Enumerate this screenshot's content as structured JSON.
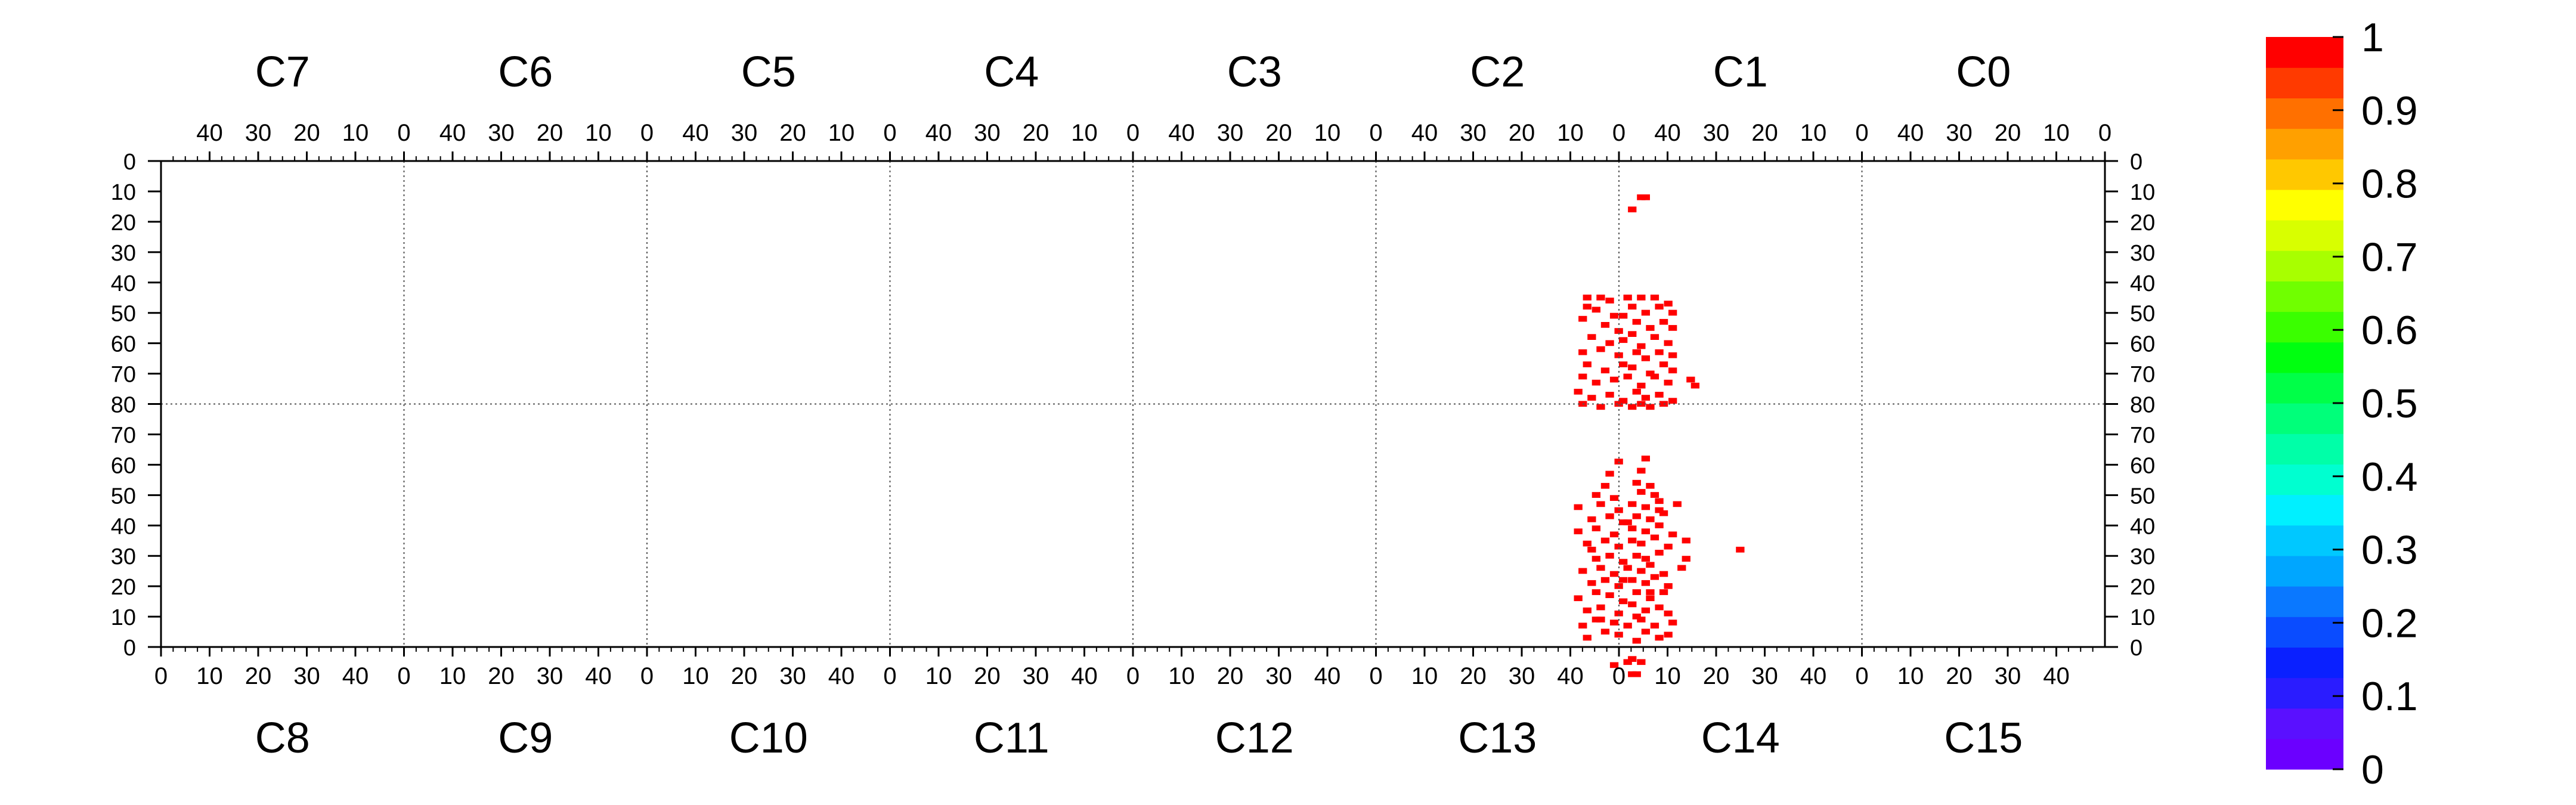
{
  "chart_data": {
    "type": "heatmap",
    "title": "",
    "xlabel": "",
    "ylabel": "",
    "chip_labels_top": [
      "C7",
      "C6",
      "C5",
      "C4",
      "C3",
      "C2",
      "C1",
      "C0"
    ],
    "chip_labels_bottom": [
      "C8",
      "C9",
      "C10",
      "C11",
      "C12",
      "C13",
      "C14",
      "C15"
    ],
    "x_ticks_top": [
      "40",
      "30",
      "20",
      "10",
      "0"
    ],
    "x_ticks_bottom": [
      "0",
      "10",
      "20",
      "30",
      "40"
    ],
    "y_ticks": [
      "0",
      "10",
      "20",
      "30",
      "40",
      "50",
      "60",
      "70",
      "80",
      "70",
      "60",
      "50",
      "40",
      "30",
      "20",
      "10",
      "0"
    ],
    "colorbar": {
      "ticks": [
        "0",
        "0.1",
        "0.2",
        "0.3",
        "0.4",
        "0.5",
        "0.6",
        "0.7",
        "0.8",
        "0.9",
        "1"
      ],
      "range": [
        0,
        1
      ],
      "colors": [
        "#6b00ff",
        "#5a10ff",
        "#2a1cff",
        "#0a20ff",
        "#0a4cff",
        "#0a78ff",
        "#00a6ff",
        "#00c8ff",
        "#00f0ff",
        "#00ffd0",
        "#00ffa8",
        "#00ff7a",
        "#00ff48",
        "#00ff10",
        "#3aff00",
        "#70ff00",
        "#a8ff00",
        "#d8ff00",
        "#ffff00",
        "#ffc800",
        "#ffa000",
        "#ff7000",
        "#ff3a00",
        "#ff0000"
      ]
    },
    "grid": "dotted chip boundaries",
    "hit_color": "#ff0000",
    "hit_value": 1,
    "hits": [
      [
        2,
        15
      ],
      [
        4,
        11
      ],
      [
        5,
        11
      ],
      [
        -8,
        44
      ],
      [
        -8,
        47
      ],
      [
        -5,
        44
      ],
      [
        -3,
        45
      ],
      [
        1,
        44
      ],
      [
        4,
        44
      ],
      [
        7,
        44
      ],
      [
        -6,
        48
      ],
      [
        -2,
        50
      ],
      [
        0,
        50
      ],
      [
        2,
        47
      ],
      [
        5,
        49
      ],
      [
        8,
        47
      ],
      [
        10,
        46
      ],
      [
        11,
        49
      ],
      [
        -9,
        51
      ],
      [
        -4,
        53
      ],
      [
        -1,
        55
      ],
      [
        3,
        52
      ],
      [
        6,
        54
      ],
      [
        9,
        52
      ],
      [
        11,
        54
      ],
      [
        -7,
        57
      ],
      [
        -3,
        59
      ],
      [
        0,
        58
      ],
      [
        2,
        56
      ],
      [
        4,
        60
      ],
      [
        7,
        57
      ],
      [
        10,
        59
      ],
      [
        -9,
        62
      ],
      [
        -5,
        61
      ],
      [
        -1,
        63
      ],
      [
        3,
        62
      ],
      [
        5,
        64
      ],
      [
        8,
        62
      ],
      [
        11,
        63
      ],
      [
        -8,
        66
      ],
      [
        -4,
        68
      ],
      [
        0,
        66
      ],
      [
        2,
        67
      ],
      [
        6,
        69
      ],
      [
        9,
        66
      ],
      [
        11,
        68
      ],
      [
        -9,
        70
      ],
      [
        -6,
        72
      ],
      [
        -2,
        71
      ],
      [
        1,
        70
      ],
      [
        4,
        73
      ],
      [
        7,
        70
      ],
      [
        10,
        72
      ],
      [
        15,
        71
      ],
      [
        16,
        73
      ],
      [
        -10,
        75
      ],
      [
        -7,
        77
      ],
      [
        -3,
        76
      ],
      [
        0,
        78
      ],
      [
        3,
        75
      ],
      [
        5,
        77
      ],
      [
        8,
        76
      ],
      [
        11,
        78
      ],
      [
        -9,
        79
      ],
      [
        -5,
        80
      ],
      [
        -1,
        79
      ],
      [
        2,
        80
      ],
      [
        4,
        79
      ],
      [
        6,
        80
      ],
      [
        9,
        79
      ],
      [
        -8,
        156
      ],
      [
        -4,
        154
      ],
      [
        -1,
        155
      ],
      [
        3,
        157
      ],
      [
        5,
        154
      ],
      [
        8,
        156
      ],
      [
        10,
        155
      ],
      [
        -9,
        152
      ],
      [
        -6,
        150
      ],
      [
        -2,
        151
      ],
      [
        1,
        152
      ],
      [
        4,
        150
      ],
      [
        7,
        152
      ],
      [
        11,
        151
      ],
      [
        -8,
        147
      ],
      [
        -5,
        146
      ],
      [
        -1,
        148
      ],
      [
        2,
        145
      ],
      [
        5,
        147
      ],
      [
        8,
        146
      ],
      [
        10,
        148
      ],
      [
        -10,
        143
      ],
      [
        -6,
        141
      ],
      [
        -3,
        142
      ],
      [
        0,
        144
      ],
      [
        3,
        141
      ],
      [
        6,
        143
      ],
      [
        9,
        141
      ],
      [
        -7,
        138
      ],
      [
        -4,
        137
      ],
      [
        -1,
        139
      ],
      [
        2,
        137
      ],
      [
        5,
        138
      ],
      [
        7,
        136
      ],
      [
        10,
        139
      ],
      [
        -9,
        134
      ],
      [
        -5,
        133
      ],
      [
        -2,
        135
      ],
      [
        1,
        133
      ],
      [
        4,
        134
      ],
      [
        6,
        132
      ],
      [
        9,
        135
      ],
      [
        13,
        133
      ],
      [
        -6,
        130
      ],
      [
        -3,
        129
      ],
      [
        0,
        131
      ],
      [
        3,
        129
      ],
      [
        5,
        130
      ],
      [
        8,
        128
      ],
      [
        14,
        130
      ],
      [
        26,
        127
      ],
      [
        -8,
        125
      ],
      [
        -4,
        124
      ],
      [
        -1,
        126
      ],
      [
        2,
        124
      ],
      [
        4,
        125
      ],
      [
        7,
        123
      ],
      [
        10,
        126
      ],
      [
        14,
        124
      ],
      [
        -10,
        121
      ],
      [
        -6,
        120
      ],
      [
        -2,
        122
      ],
      [
        2,
        120
      ],
      [
        5,
        121
      ],
      [
        8,
        119
      ],
      [
        11,
        122
      ],
      [
        -7,
        117
      ],
      [
        -3,
        116
      ],
      [
        0,
        118
      ],
      [
        3,
        116
      ],
      [
        6,
        117
      ],
      [
        9,
        115
      ],
      [
        -10,
        113
      ],
      [
        -5,
        112
      ],
      [
        -1,
        114
      ],
      [
        2,
        112
      ],
      [
        5,
        113
      ],
      [
        8,
        111
      ],
      [
        12,
        112
      ],
      [
        -6,
        109
      ],
      [
        -2,
        110
      ],
      [
        4,
        108
      ],
      [
        7,
        109
      ],
      [
        -4,
        106
      ],
      [
        3,
        105
      ],
      [
        6,
        106
      ],
      [
        -3,
        102
      ],
      [
        4,
        101
      ],
      [
        -1,
        98
      ],
      [
        5,
        97
      ],
      [
        -5,
        150
      ],
      [
        3,
        149
      ],
      [
        0,
        137
      ],
      [
        6,
        141
      ],
      [
        -7,
        127
      ],
      [
        1,
        118
      ],
      [
        8,
        114
      ],
      [
        -2,
        165
      ],
      [
        1,
        164
      ],
      [
        2,
        163
      ],
      [
        4,
        164
      ],
      [
        2,
        168
      ],
      [
        3,
        168
      ]
    ]
  }
}
